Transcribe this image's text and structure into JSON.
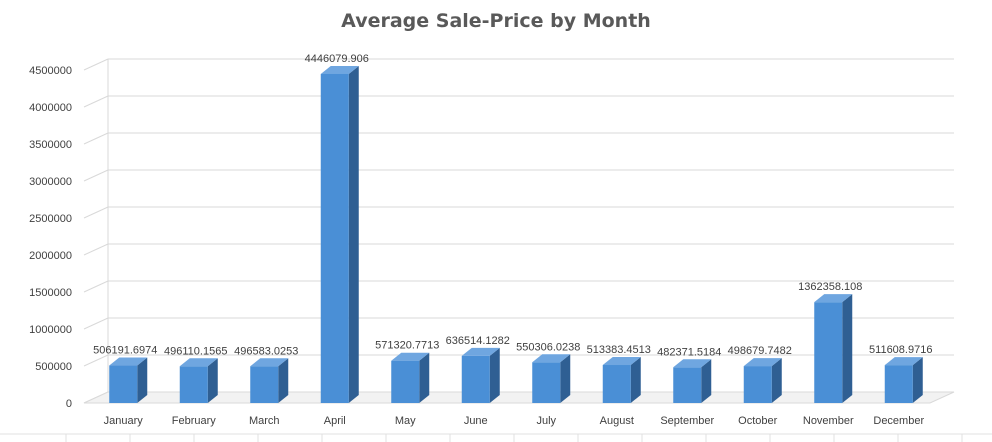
{
  "chart_data": {
    "type": "bar",
    "title": "Average Sale-Price by Month",
    "xlabel": "",
    "ylabel": "",
    "ylim": [
      0,
      4500000
    ],
    "yticks": [
      0,
      500000,
      1000000,
      1500000,
      2000000,
      2500000,
      3000000,
      3500000,
      4000000,
      4500000
    ],
    "ytick_labels": [
      "0",
      "500000",
      "1000000",
      "1500000",
      "2000000",
      "2500000",
      "3000000",
      "3500000",
      "4000000",
      "4500000"
    ],
    "grid": true,
    "legend": "none",
    "style": "3d-column",
    "colors": {
      "bar_front": "#4a8fd6",
      "bar_side": "#2f5f93",
      "bar_top": "#6fa6e0",
      "grid": "#d9d9d9"
    },
    "categories": [
      "January",
      "February",
      "March",
      "April",
      "May",
      "June",
      "July",
      "August",
      "September",
      "October",
      "November",
      "December"
    ],
    "values": [
      506191.6974,
      496110.1565,
      496583.0253,
      4446079.906,
      571320.7713,
      636514.1282,
      550306.0238,
      513383.4513,
      482371.5184,
      498679.7482,
      1362358.108,
      511608.9716
    ],
    "data_labels": [
      "506191.6974",
      "496110.1565",
      "496583.0253",
      "4446079.906",
      "571320.7713",
      "636514.1282",
      "550306.0238",
      "513383.4513",
      "482371.5184",
      "498679.7482",
      "1362358.108",
      "511608.9716"
    ]
  }
}
